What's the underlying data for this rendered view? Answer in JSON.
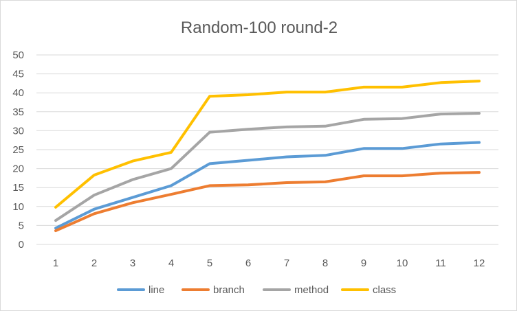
{
  "chart_data": {
    "type": "line",
    "title": "Random-100 round-2",
    "xlabel": "",
    "ylabel": "",
    "categories": [
      "1",
      "2",
      "3",
      "4",
      "5",
      "6",
      "7",
      "8",
      "9",
      "10",
      "11",
      "12"
    ],
    "ylim": [
      0,
      50
    ],
    "yticks": [
      0,
      5,
      10,
      15,
      20,
      25,
      30,
      35,
      40,
      45,
      50
    ],
    "grid": true,
    "legend": "bottom",
    "series": [
      {
        "name": "line",
        "color": "#5b9bd5",
        "values": [
          4.3,
          9.3,
          12.4,
          15.5,
          21.3,
          22.2,
          23.1,
          23.5,
          25.3,
          25.3,
          26.5,
          26.9
        ]
      },
      {
        "name": "branch",
        "color": "#ed7d31",
        "values": [
          3.6,
          8.1,
          11.0,
          13.2,
          15.5,
          15.7,
          16.3,
          16.5,
          18.1,
          18.1,
          18.8,
          19.0
        ]
      },
      {
        "name": "method",
        "color": "#a5a5a5",
        "values": [
          6.3,
          13.0,
          17.1,
          20.0,
          29.6,
          30.4,
          31.0,
          31.2,
          33.0,
          33.2,
          34.4,
          34.6
        ]
      },
      {
        "name": "class",
        "color": "#ffc000",
        "values": [
          9.8,
          18.3,
          22.0,
          24.3,
          39.1,
          39.5,
          40.2,
          40.2,
          41.5,
          41.5,
          42.7,
          43.1
        ]
      }
    ]
  }
}
